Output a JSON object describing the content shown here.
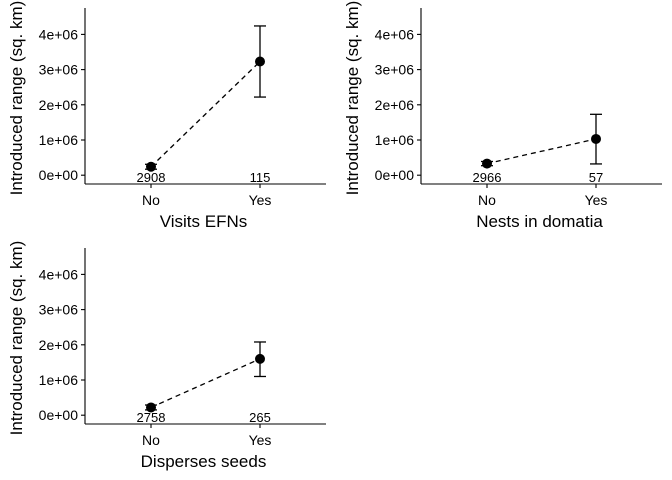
{
  "chart_data": [
    {
      "type": "line",
      "xlabel": "Visits EFNs",
      "ylabel": "Introduced range (sq. km)",
      "categories": [
        "No",
        "Yes"
      ],
      "values": [
        240000,
        3230000
      ],
      "error_low": [
        170000,
        2220000
      ],
      "error_high": [
        310000,
        4240000
      ],
      "n_labels": [
        "2908",
        "115"
      ],
      "yticks": [
        "0e+00",
        "1e+06",
        "2e+06",
        "3e+06",
        "4e+06"
      ],
      "ytick_values": [
        0,
        1000000,
        2000000,
        3000000,
        4000000
      ],
      "ylim": [
        -250000,
        4750000
      ],
      "line_style": "dashed",
      "grid": false
    },
    {
      "type": "line",
      "xlabel": "Nests in domatia",
      "ylabel": "Introduced range (sq. km)",
      "categories": [
        "No",
        "Yes"
      ],
      "values": [
        330000,
        1030000
      ],
      "error_low": [
        270000,
        320000
      ],
      "error_high": [
        390000,
        1730000
      ],
      "n_labels": [
        "2966",
        "57"
      ],
      "yticks": [
        "0e+00",
        "1e+06",
        "2e+06",
        "3e+06",
        "4e+06"
      ],
      "ytick_values": [
        0,
        1000000,
        2000000,
        3000000,
        4000000
      ],
      "ylim": [
        -250000,
        4750000
      ],
      "line_style": "dashed",
      "grid": false
    },
    {
      "type": "line",
      "xlabel": "Disperses seeds",
      "ylabel": "Introduced range (sq. km)",
      "categories": [
        "No",
        "Yes"
      ],
      "values": [
        220000,
        1600000
      ],
      "error_low": [
        150000,
        1100000
      ],
      "error_high": [
        290000,
        2080000
      ],
      "n_labels": [
        "2758",
        "265"
      ],
      "yticks": [
        "0e+00",
        "1e+06",
        "2e+06",
        "3e+06",
        "4e+06"
      ],
      "ytick_values": [
        0,
        1000000,
        2000000,
        3000000,
        4000000
      ],
      "ylim": [
        -250000,
        4750000
      ],
      "line_style": "dashed",
      "grid": false
    }
  ]
}
